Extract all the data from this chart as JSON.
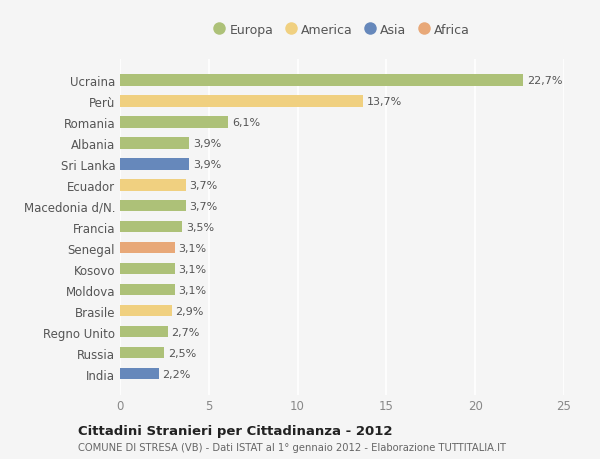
{
  "categories": [
    "Ucraina",
    "Perù",
    "Romania",
    "Albania",
    "Sri Lanka",
    "Ecuador",
    "Macedonia d/N.",
    "Francia",
    "Senegal",
    "Kosovo",
    "Moldova",
    "Brasile",
    "Regno Unito",
    "Russia",
    "India"
  ],
  "values": [
    22.7,
    13.7,
    6.1,
    3.9,
    3.9,
    3.7,
    3.7,
    3.5,
    3.1,
    3.1,
    3.1,
    2.9,
    2.7,
    2.5,
    2.2
  ],
  "labels": [
    "22,7%",
    "13,7%",
    "6,1%",
    "3,9%",
    "3,9%",
    "3,7%",
    "3,7%",
    "3,5%",
    "3,1%",
    "3,1%",
    "3,1%",
    "2,9%",
    "2,7%",
    "2,5%",
    "2,2%"
  ],
  "continents": [
    "Europa",
    "America",
    "Europa",
    "Europa",
    "Asia",
    "America",
    "Europa",
    "Europa",
    "Africa",
    "Europa",
    "Europa",
    "America",
    "Europa",
    "Europa",
    "Asia"
  ],
  "colors": {
    "Europa": "#adc178",
    "America": "#f0d080",
    "Asia": "#6688bb",
    "Africa": "#e8a878"
  },
  "title": "Cittadini Stranieri per Cittadinanza - 2012",
  "subtitle": "COMUNE DI STRESA (VB) - Dati ISTAT al 1° gennaio 2012 - Elaborazione TUTTITALIA.IT",
  "xlim": [
    0,
    25
  ],
  "xticks": [
    0,
    5,
    10,
    15,
    20,
    25
  ],
  "background_color": "#f5f5f5",
  "plot_bg_color": "#f5f5f5",
  "grid_color": "#ffffff",
  "bar_height": 0.55
}
